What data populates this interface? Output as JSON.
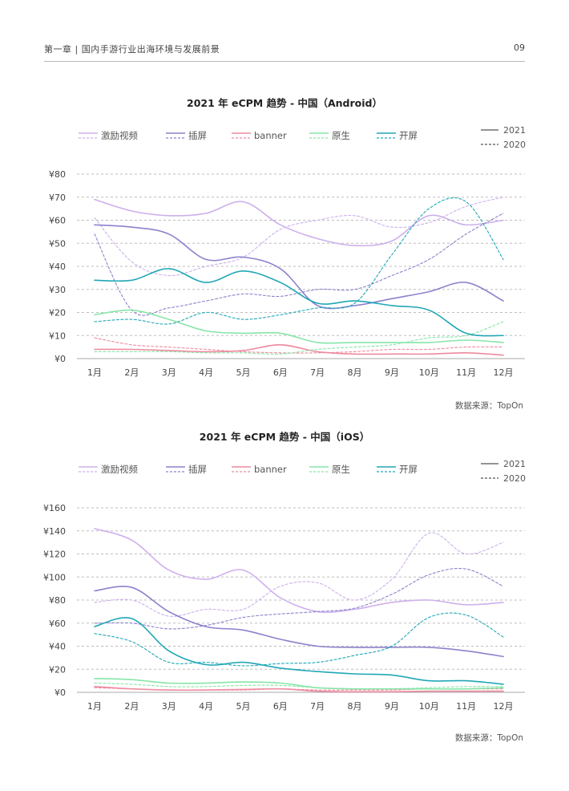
{
  "header": {
    "chapter": "第一章 | 国内手游行业出海环境与发展前景",
    "page_number": "09"
  },
  "charts": [
    {
      "title": "2021 年 eCPM 趋势 - 中国（Android）",
      "source": "数据来源：TopOn",
      "chart_data": {
        "type": "line",
        "title": "2021 年 eCPM 趋势 - 中国（Android）",
        "xlabel": "",
        "ylabel": "",
        "x": [
          "1月",
          "2月",
          "3月",
          "4月",
          "5月",
          "6月",
          "7月",
          "8月",
          "9月",
          "10月",
          "11月",
          "12月"
        ],
        "ylim": [
          0,
          80
        ],
        "yticks": [
          0,
          10,
          20,
          30,
          40,
          50,
          60,
          70,
          80
        ],
        "ytick_labels": [
          "¥0",
          "¥10",
          "¥20",
          "¥30",
          "¥40",
          "¥50",
          "¥60",
          "¥70",
          "¥80"
        ],
        "grid": true,
        "legend_position": "top",
        "year_legend": [
          {
            "label": "2021",
            "style": "solid"
          },
          {
            "label": "2020",
            "style": "dashed"
          }
        ],
        "series": [
          {
            "name": "激励视频",
            "year": "2021",
            "color": "#cdb0ec",
            "dashed": false,
            "values": [
              69,
              64,
              62,
              63,
              68,
              58,
              52,
              49,
              51,
              62,
              58,
              60
            ]
          },
          {
            "name": "激励视频",
            "year": "2020",
            "color": "#cdb0ec",
            "dashed": true,
            "values": [
              61,
              42,
              36,
              40,
              44,
              56,
              60,
              62,
              57,
              59,
              66,
              70
            ]
          },
          {
            "name": "插屏",
            "year": "2021",
            "color": "#8c82cc",
            "dashed": false,
            "values": [
              58,
              57,
              54,
              43,
              44,
              39,
              23,
              23,
              26,
              29,
              33,
              25
            ]
          },
          {
            "name": "插屏",
            "year": "2020",
            "color": "#8c82cc",
            "dashed": true,
            "values": [
              54,
              21,
              22,
              25,
              28,
              27,
              30,
              30,
              36,
              43,
              54,
              63
            ]
          },
          {
            "name": "banner",
            "year": "2021",
            "color": "#ee8a9e",
            "dashed": false,
            "values": [
              4,
              4,
              3.5,
              3,
              3.5,
              6,
              3,
              2,
              2,
              2,
              2.5,
              1.5
            ]
          },
          {
            "name": "banner",
            "year": "2020",
            "color": "#ee8a9e",
            "dashed": true,
            "values": [
              9,
              6,
              5,
              4,
              3,
              2.5,
              2.5,
              3,
              4,
              4,
              5,
              5
            ]
          },
          {
            "name": "原生",
            "year": "2021",
            "color": "#86e6a8",
            "dashed": false,
            "values": [
              19,
              21,
              17,
              12,
              11,
              11,
              7,
              7,
              7,
              7,
              8,
              7
            ]
          },
          {
            "name": "原生",
            "year": "2020",
            "color": "#86e6a8",
            "dashed": true,
            "values": [
              3,
              3,
              3,
              2.5,
              2.5,
              2,
              4,
              5,
              6,
              9,
              10,
              16
            ]
          },
          {
            "name": "开屏",
            "year": "2021",
            "color": "#20a7b6",
            "dashed": false,
            "values": [
              34,
              34,
              39,
              33,
              38,
              33,
              24,
              25,
              23,
              21,
              11,
              10
            ]
          },
          {
            "name": "开屏",
            "year": "2020",
            "color": "#20a7b6",
            "dashed": true,
            "values": [
              16,
              17,
              15,
              20,
              17,
              19,
              22,
              24,
              45,
              65,
              68,
              43
            ]
          }
        ]
      }
    },
    {
      "title": "2021 年 eCPM 趋势 - 中国（iOS）",
      "source": "数据来源：TopOn",
      "chart_data": {
        "type": "line",
        "title": "2021 年 eCPM 趋势 - 中国（iOS）",
        "xlabel": "",
        "ylabel": "",
        "x": [
          "1月",
          "2月",
          "3月",
          "4月",
          "5月",
          "6月",
          "7月",
          "8月",
          "9月",
          "10月",
          "11月",
          "12月"
        ],
        "ylim": [
          0,
          160
        ],
        "yticks": [
          0,
          20,
          40,
          60,
          80,
          100,
          120,
          140,
          160
        ],
        "ytick_labels": [
          "¥0",
          "¥20",
          "¥40",
          "¥60",
          "¥80",
          "¥100",
          "¥120",
          "¥140",
          "¥160"
        ],
        "grid": true,
        "legend_position": "top",
        "year_legend": [
          {
            "label": "2021",
            "style": "solid"
          },
          {
            "label": "2020",
            "style": "dashed"
          }
        ],
        "series": [
          {
            "name": "激励视频",
            "year": "2021",
            "color": "#cdb0ec",
            "dashed": false,
            "values": [
              142,
              132,
              106,
              98,
              106,
              82,
              70,
              72,
              78,
              80,
              76,
              78
            ]
          },
          {
            "name": "激励视频",
            "year": "2020",
            "color": "#cdb0ec",
            "dashed": true,
            "values": [
              78,
              80,
              66,
              72,
              72,
              92,
              95,
              80,
              98,
              138,
              120,
              130
            ]
          },
          {
            "name": "插屏",
            "year": "2021",
            "color": "#8c82cc",
            "dashed": false,
            "values": [
              88,
              91,
              70,
              57,
              54,
              46,
              40,
              39,
              39,
              39,
              36,
              31
            ]
          },
          {
            "name": "插屏",
            "year": "2020",
            "color": "#8c82cc",
            "dashed": true,
            "values": [
              60,
              60,
              55,
              58,
              65,
              68,
              70,
              73,
              85,
              102,
              107,
              92
            ]
          },
          {
            "name": "banner",
            "year": "2021",
            "color": "#ee8a9e",
            "dashed": false,
            "values": [
              5,
              3,
              2,
              2,
              2.5,
              3,
              1,
              0.5,
              0.5,
              1,
              1,
              1
            ]
          },
          {
            "name": "banner",
            "year": "2020",
            "color": "#ee8a9e",
            "dashed": true,
            "values": [
              4,
              3,
              2,
              2,
              2,
              3,
              2,
              2,
              2,
              3,
              3,
              3
            ]
          },
          {
            "name": "原生",
            "year": "2021",
            "color": "#86e6a8",
            "dashed": false,
            "values": [
              12,
              11,
              8,
              8,
              9,
              8,
              4,
              3,
              3,
              3,
              3,
              4
            ]
          },
          {
            "name": "原生",
            "year": "2020",
            "color": "#86e6a8",
            "dashed": true,
            "values": [
              8,
              7,
              5,
              5,
              6,
              6,
              4,
              3,
              3,
              4,
              5,
              5
            ]
          },
          {
            "name": "开屏",
            "year": "2021",
            "color": "#20a7b6",
            "dashed": false,
            "values": [
              57,
              64,
              36,
              24,
              26,
              21,
              18,
              16,
              15,
              10,
              10,
              7
            ]
          },
          {
            "name": "开屏",
            "year": "2020",
            "color": "#20a7b6",
            "dashed": true,
            "values": [
              51,
              44,
              26,
              26,
              23,
              25,
              26,
              32,
              40,
              65,
              67,
              48
            ]
          }
        ]
      }
    }
  ]
}
